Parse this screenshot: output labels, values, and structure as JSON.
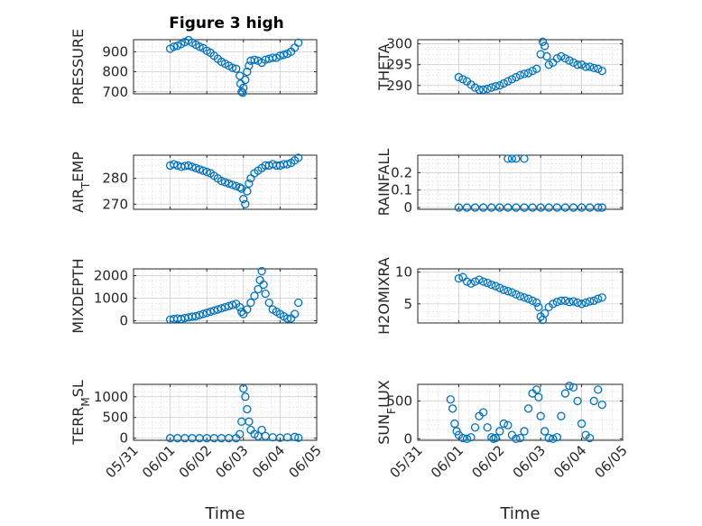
{
  "figure": {
    "title": "Figure 3 high",
    "time_label": "Time",
    "marker_color": "#0072BD",
    "grid": "on (major and minor dotted)"
  },
  "chart_data": [
    {
      "type": "scatter",
      "ylabel": "PRESSURE",
      "xlim": [
        0,
        5
      ],
      "ylim": [
        690,
        960
      ],
      "yticks": [
        700,
        800,
        900
      ],
      "x": [
        1.0,
        1.1,
        1.2,
        1.3,
        1.4,
        1.5,
        1.6,
        1.7,
        1.8,
        1.9,
        2.0,
        2.1,
        2.2,
        2.3,
        2.4,
        2.5,
        2.6,
        2.7,
        2.8,
        2.9,
        2.92,
        2.95,
        2.98,
        3.0,
        3.05,
        3.1,
        3.15,
        3.2,
        3.3,
        3.4,
        3.5,
        3.6,
        3.7,
        3.8,
        3.9,
        4.0,
        4.1,
        4.2,
        4.3,
        4.4,
        4.5
      ],
      "y": [
        915,
        925,
        930,
        938,
        948,
        958,
        945,
        935,
        925,
        918,
        905,
        895,
        880,
        865,
        850,
        840,
        830,
        820,
        815,
        780,
        740,
        700,
        695,
        720,
        760,
        800,
        830,
        855,
        860,
        855,
        845,
        860,
        865,
        870,
        870,
        880,
        885,
        890,
        900,
        920,
        945
      ]
    },
    {
      "type": "scatter",
      "ylabel": "THETA",
      "xlim": [
        0,
        5
      ],
      "ylim": [
        288,
        301
      ],
      "yticks": [
        290,
        295,
        300
      ],
      "x": [
        1.0,
        1.1,
        1.2,
        1.3,
        1.4,
        1.5,
        1.6,
        1.7,
        1.8,
        1.9,
        2.0,
        2.1,
        2.2,
        2.3,
        2.4,
        2.5,
        2.6,
        2.7,
        2.8,
        2.9,
        3.0,
        3.05,
        3.1,
        3.15,
        3.2,
        3.3,
        3.4,
        3.5,
        3.6,
        3.7,
        3.8,
        3.9,
        4.0,
        4.1,
        4.2,
        4.3,
        4.4,
        4.5
      ],
      "y": [
        292.0,
        291.5,
        291.0,
        290.2,
        289.5,
        289.0,
        289.0,
        289.2,
        289.5,
        289.8,
        290.0,
        290.5,
        291.0,
        291.5,
        292.0,
        292.5,
        292.8,
        293.0,
        293.5,
        294.0,
        297.5,
        300.5,
        299.5,
        297.0,
        295.0,
        295.5,
        296.5,
        297.0,
        296.5,
        296.0,
        295.5,
        295.0,
        295.0,
        294.5,
        294.5,
        294.2,
        294.0,
        293.5
      ]
    },
    {
      "type": "scatter",
      "ylabel": "AIR_TEMP",
      "xlim": [
        0,
        5
      ],
      "ylim": [
        268,
        289
      ],
      "yticks": [
        270,
        280
      ],
      "x": [
        1.0,
        1.1,
        1.2,
        1.3,
        1.4,
        1.5,
        1.6,
        1.7,
        1.8,
        1.9,
        2.0,
        2.1,
        2.2,
        2.3,
        2.4,
        2.5,
        2.6,
        2.7,
        2.8,
        2.9,
        2.95,
        3.0,
        3.05,
        3.1,
        3.15,
        3.2,
        3.3,
        3.4,
        3.5,
        3.6,
        3.7,
        3.8,
        3.9,
        4.0,
        4.1,
        4.2,
        4.3,
        4.4,
        4.5
      ],
      "y": [
        285.0,
        285.5,
        285.0,
        284.5,
        284.8,
        285.0,
        284.5,
        284.0,
        283.5,
        283.0,
        282.5,
        282.0,
        281.0,
        280.0,
        279.0,
        278.5,
        278.0,
        277.5,
        277.0,
        276.5,
        276.0,
        272.0,
        270.0,
        275.0,
        278.0,
        280.0,
        282.0,
        283.0,
        284.0,
        285.0,
        285.0,
        285.5,
        285.0,
        285.0,
        285.5,
        285.5,
        286.0,
        287.0,
        288.0
      ]
    },
    {
      "type": "scatter",
      "ylabel": "RAINFALL",
      "xlim": [
        0,
        5
      ],
      "ylim": [
        -0.01,
        0.3
      ],
      "yticks": [
        0,
        0.1,
        0.2
      ],
      "x": [
        1.0,
        1.2,
        1.4,
        1.6,
        1.8,
        2.0,
        2.2,
        2.4,
        2.6,
        2.8,
        3.0,
        3.2,
        3.4,
        3.6,
        3.8,
        4.0,
        4.2,
        4.4,
        4.5,
        2.2,
        2.3,
        2.4,
        2.6
      ],
      "y": [
        0,
        0,
        0,
        0,
        0,
        0,
        0,
        0,
        0,
        0,
        0,
        0,
        0,
        0,
        0,
        0,
        0,
        0,
        0,
        0.28,
        0.28,
        0.28,
        0.28
      ]
    },
    {
      "type": "scatter",
      "ylabel": "MIXDEPTH",
      "xlim": [
        0,
        5
      ],
      "ylim": [
        -100,
        2300
      ],
      "yticks": [
        0,
        1000,
        2000
      ],
      "x": [
        1.0,
        1.1,
        1.2,
        1.3,
        1.4,
        1.5,
        1.6,
        1.7,
        1.8,
        1.9,
        2.0,
        2.1,
        2.2,
        2.3,
        2.4,
        2.5,
        2.6,
        2.7,
        2.8,
        2.9,
        2.95,
        3.0,
        3.1,
        3.2,
        3.3,
        3.4,
        3.45,
        3.5,
        3.55,
        3.6,
        3.7,
        3.8,
        3.9,
        4.0,
        4.1,
        4.2,
        4.3,
        4.4,
        4.5
      ],
      "y": [
        50,
        80,
        100,
        80,
        120,
        150,
        180,
        200,
        250,
        300,
        350,
        400,
        450,
        500,
        550,
        600,
        650,
        700,
        750,
        600,
        400,
        300,
        500,
        800,
        1100,
        1400,
        1800,
        2200,
        1600,
        1200,
        800,
        500,
        400,
        300,
        200,
        100,
        100,
        300,
        800
      ]
    },
    {
      "type": "scatter",
      "ylabel": "H2OMIXRA",
      "xlim": [
        0,
        5
      ],
      "ylim": [
        2,
        10.5
      ],
      "yticks": [
        5,
        10
      ],
      "x": [
        1.0,
        1.1,
        1.2,
        1.3,
        1.4,
        1.5,
        1.6,
        1.7,
        1.8,
        1.9,
        2.0,
        2.1,
        2.2,
        2.3,
        2.4,
        2.5,
        2.6,
        2.7,
        2.8,
        2.9,
        2.95,
        3.0,
        3.05,
        3.1,
        3.2,
        3.3,
        3.4,
        3.5,
        3.6,
        3.7,
        3.8,
        3.9,
        4.0,
        4.1,
        4.2,
        4.3,
        4.4,
        4.5
      ],
      "y": [
        9.0,
        9.2,
        8.5,
        8.2,
        8.5,
        8.8,
        8.5,
        8.3,
        8.0,
        7.8,
        7.5,
        7.2,
        7.0,
        6.8,
        6.5,
        6.2,
        6.0,
        5.8,
        5.5,
        5.2,
        4.5,
        3.0,
        2.5,
        3.5,
        4.5,
        5.0,
        5.3,
        5.5,
        5.5,
        5.3,
        5.4,
        5.2,
        5.0,
        5.2,
        5.4,
        5.5,
        5.8,
        6.0
      ]
    },
    {
      "type": "scatter",
      "ylabel": "TERR_MSL",
      "xlim": [
        0,
        5
      ],
      "ylim": [
        -50,
        1300
      ],
      "yticks": [
        0,
        500,
        1000
      ],
      "x": [
        1.0,
        1.2,
        1.4,
        1.6,
        1.8,
        2.0,
        2.2,
        2.4,
        2.6,
        2.8,
        2.9,
        2.95,
        3.0,
        3.05,
        3.1,
        3.15,
        3.2,
        3.3,
        3.4,
        3.5,
        3.6,
        3.8,
        4.0,
        4.2,
        4.4,
        4.5
      ],
      "y": [
        0,
        0,
        0,
        0,
        0,
        0,
        0,
        0,
        0,
        0,
        100,
        400,
        1200,
        1000,
        700,
        400,
        200,
        100,
        50,
        200,
        50,
        20,
        10,
        20,
        30,
        10
      ]
    },
    {
      "type": "scatter",
      "ylabel": "SUN_FLUX",
      "xlim": [
        0,
        5
      ],
      "ylim": [
        -20,
        720
      ],
      "yticks": [
        0,
        500
      ],
      "x": [
        0.8,
        0.85,
        0.9,
        0.95,
        1.0,
        1.1,
        1.2,
        1.3,
        1.4,
        1.5,
        1.6,
        1.7,
        1.8,
        1.85,
        1.9,
        2.0,
        2.1,
        2.2,
        2.3,
        2.4,
        2.5,
        2.6,
        2.7,
        2.8,
        2.9,
        2.95,
        3.0,
        3.1,
        3.2,
        3.3,
        3.4,
        3.5,
        3.6,
        3.7,
        3.8,
        3.9,
        4.0,
        4.1,
        4.2,
        4.3,
        4.4,
        4.5
      ],
      "y": [
        520,
        400,
        200,
        100,
        50,
        10,
        0,
        20,
        150,
        300,
        350,
        150,
        20,
        0,
        10,
        100,
        200,
        180,
        50,
        0,
        10,
        100,
        400,
        600,
        650,
        550,
        300,
        100,
        10,
        0,
        20,
        300,
        600,
        700,
        680,
        500,
        200,
        50,
        10,
        500,
        650,
        450
      ]
    }
  ],
  "axes_tick_labels": {
    "xticks": [
      0,
      1,
      2,
      3,
      4,
      5
    ],
    "xtick_labels": [
      "05/31",
      "06/01",
      "06/02",
      "06/03",
      "06/04",
      "06/05"
    ]
  }
}
